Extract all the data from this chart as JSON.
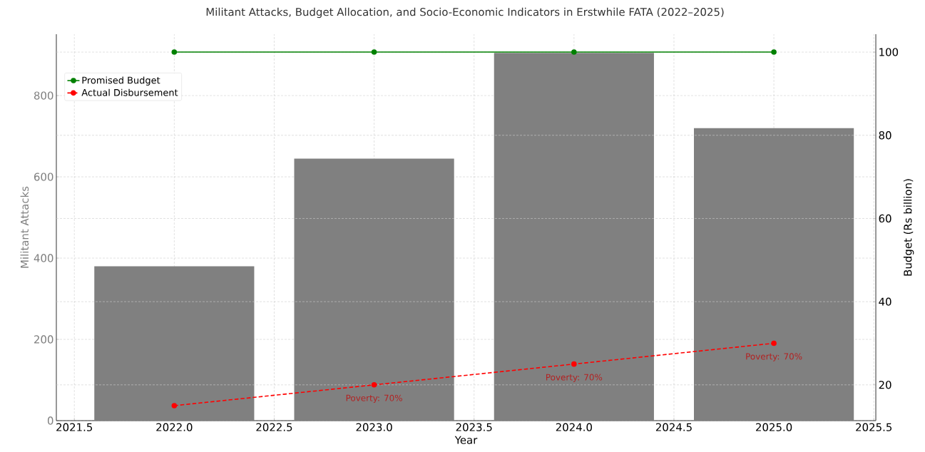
{
  "chart_data": {
    "type": "bar",
    "title": "Militant Attacks, Budget Allocation, and Socio-Economic Indicators in Erstwhile FATA (2022–2025)",
    "xlabel": "Year",
    "ylabel": "Militant Attacks",
    "y2label": "Budget (Rs billion)",
    "x": [
      2022,
      2023,
      2024,
      2025
    ],
    "series": [
      {
        "color": "#808080",
        "values": [
          380,
          645,
          905,
          720
        ]
      },
      {
        "name": "Promised Budget",
        "type": "line",
        "axis": "y2",
        "color": "#008000",
        "marker": "circle",
        "line_style": "solid",
        "values": [
          100,
          100,
          100,
          100
        ]
      },
      {
        "name": "Actual Disbursement",
        "type": "line",
        "axis": "y2",
        "color": "#ff0000",
        "marker": "circle",
        "line_style": "dashed",
        "values": [
          15,
          20,
          25,
          30
        ]
      }
    ],
    "xlim": [
      2021.41,
      2025.51
    ],
    "xticks": [
      {
        "value": 2021.5,
        "label": "2021.5"
      },
      {
        "value": 2022,
        "label": "2022.0"
      },
      {
        "value": 2022.5,
        "label": "2022.5"
      },
      {
        "value": 2023,
        "label": "2023.0"
      },
      {
        "value": 2023.5,
        "label": "2023.5"
      },
      {
        "value": 2024,
        "label": "2024.0"
      },
      {
        "value": 2024.5,
        "label": "2024.5"
      },
      {
        "value": 2025,
        "label": "2025.0"
      },
      {
        "value": 2025.5,
        "label": "2025.5"
      }
    ],
    "ylim": [
      0,
      951
    ],
    "yticks": [
      0,
      200,
      400,
      600,
      800
    ],
    "y2lim": [
      11.4,
      104.3
    ],
    "y2ticks": [
      20,
      40,
      60,
      80,
      100
    ],
    "annotations": [
      "Poverty: 70%",
      "Poverty: 70%",
      "Poverty: 70%"
    ],
    "grid": true,
    "legend": "top left"
  }
}
